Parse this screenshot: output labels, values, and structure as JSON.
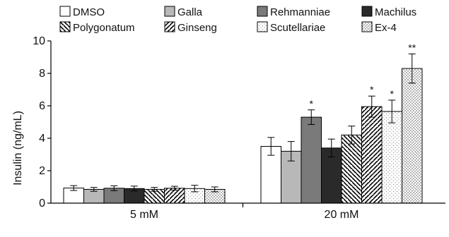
{
  "chart_data": {
    "type": "bar",
    "categories": [
      "5 mM",
      "20 mM"
    ],
    "ylabel": "Insulin (ng/mL)",
    "ylim": [
      0,
      10
    ],
    "yticks": [
      0,
      2,
      4,
      6,
      8,
      10
    ],
    "legend_position": "top",
    "grid": false,
    "series": [
      {
        "name": "DMSO",
        "pattern": "white",
        "values": [
          0.93,
          3.5
        ],
        "errors": [
          0.15,
          0.55
        ],
        "significance": [
          "",
          ""
        ]
      },
      {
        "name": "Galla",
        "pattern": "lightgray",
        "values": [
          0.85,
          3.2
        ],
        "errors": [
          0.12,
          0.6
        ],
        "significance": [
          "",
          ""
        ]
      },
      {
        "name": "Rehmanniae",
        "pattern": "gray",
        "values": [
          0.92,
          5.3
        ],
        "errors": [
          0.15,
          0.45
        ],
        "significance": [
          "",
          "*"
        ]
      },
      {
        "name": "Machilus",
        "pattern": "black",
        "values": [
          0.9,
          3.4
        ],
        "errors": [
          0.15,
          0.55
        ],
        "significance": [
          "",
          ""
        ]
      },
      {
        "name": "Polygonatum",
        "pattern": "backslash-hatch",
        "values": [
          0.85,
          4.2
        ],
        "errors": [
          0.12,
          0.55
        ],
        "significance": [
          "",
          ""
        ]
      },
      {
        "name": "Ginseng",
        "pattern": "slash-hatch",
        "values": [
          0.92,
          5.95
        ],
        "errors": [
          0.12,
          0.65
        ],
        "significance": [
          "",
          "*"
        ]
      },
      {
        "name": "Scutellariae",
        "pattern": "dots-sparse",
        "values": [
          0.9,
          5.65
        ],
        "errors": [
          0.2,
          0.7
        ],
        "significance": [
          "",
          "*"
        ]
      },
      {
        "name": "Ex-4",
        "pattern": "dots-dense",
        "values": [
          0.85,
          8.3
        ],
        "errors": [
          0.15,
          0.9
        ],
        "significance": [
          "",
          "**"
        ]
      }
    ]
  }
}
